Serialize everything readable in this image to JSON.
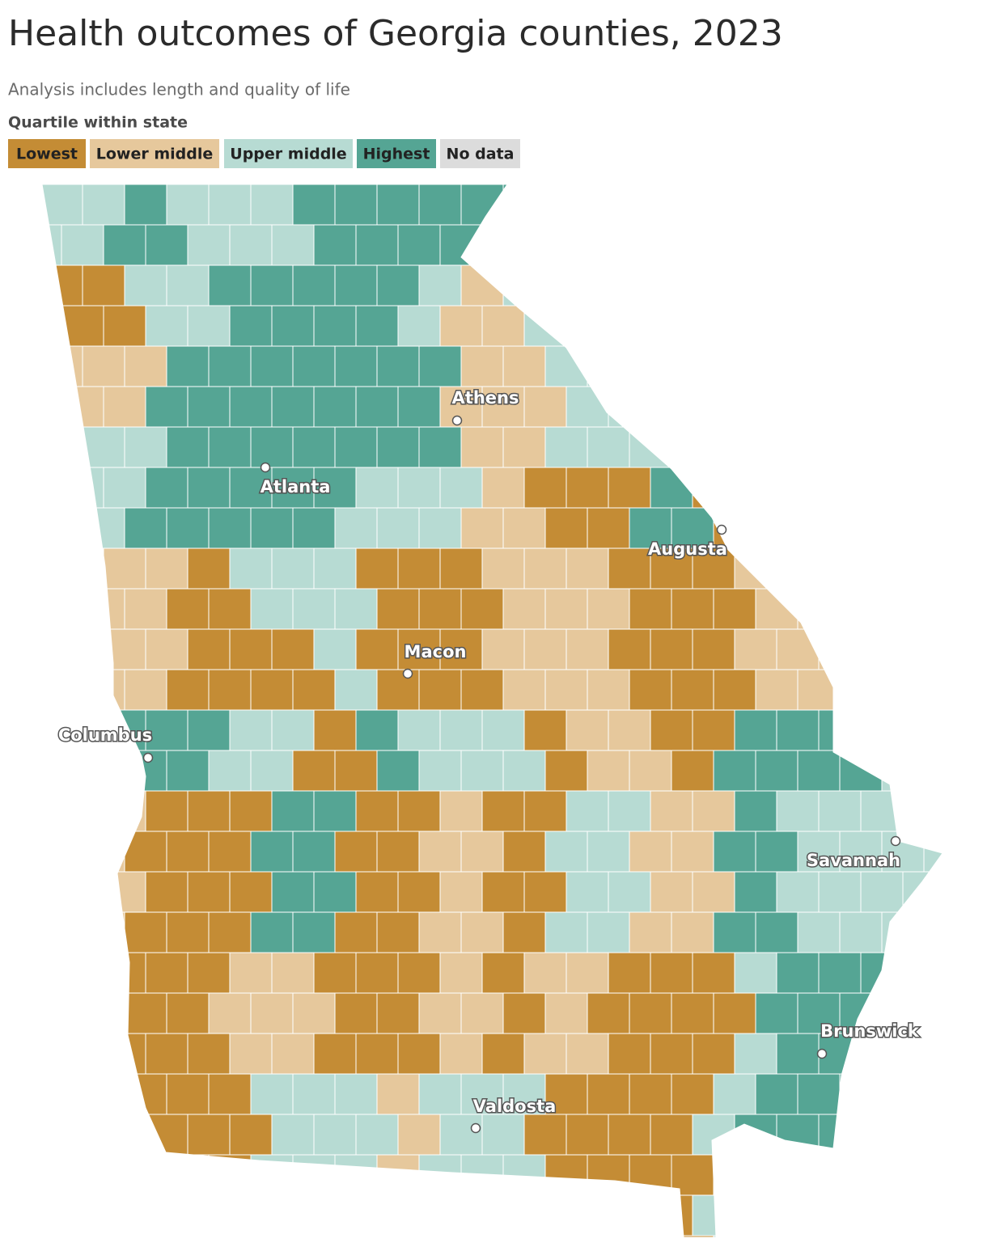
{
  "header": {
    "title": "Health outcomes of Georgia counties, 2023",
    "subtitle": "Analysis includes length and quality of life"
  },
  "legend": {
    "title": "Quartile within state",
    "items": [
      {
        "label": "Lowest",
        "color": "#c48c35"
      },
      {
        "label": "Lower middle",
        "color": "#e6c89c"
      },
      {
        "label": "Upper middle",
        "color": "#b7dbd3"
      },
      {
        "label": "Highest",
        "color": "#55a594"
      },
      {
        "label": "No data",
        "color": "#dcdcdc"
      }
    ]
  },
  "cities": [
    "Athens",
    "Atlanta",
    "Augusta",
    "Macon",
    "Columbus",
    "Savannah",
    "Brunswick",
    "Valdosta"
  ]
}
